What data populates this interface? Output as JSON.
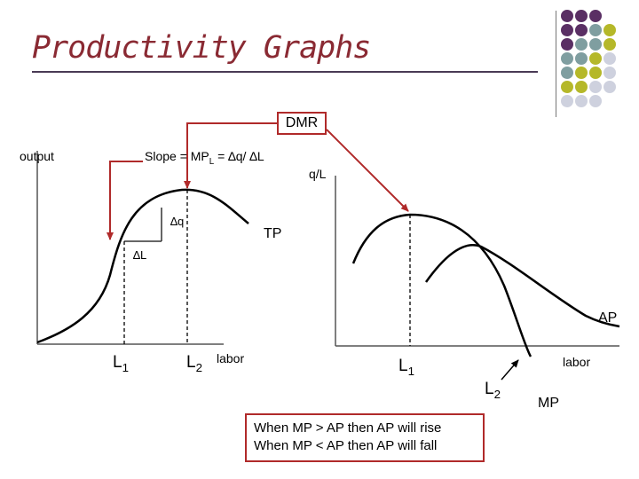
{
  "title": "Productivity Graphs",
  "accent_colors": {
    "dark_purple": "#5a2f64",
    "teal": "#7f9ea0",
    "olive": "#b5b829",
    "light_gray": "#ced1de",
    "arrow_red": "#b02a2a"
  },
  "left_graph": {
    "y_axis_label": "output",
    "slope_label": "Slope = MP",
    "slope_sub": "L",
    "slope_rest": " = ∆q/ ∆L",
    "delta_q": "∆q",
    "delta_l": "∆L",
    "curve_label": "TP",
    "x_axis_label": "labor",
    "l1": "L",
    "l1_sub": "1",
    "l2": "L",
    "l2_sub": "2"
  },
  "right_graph": {
    "y_axis_label": "q/L",
    "ap_label": "AP",
    "mp_label": "MP",
    "x_axis_label": "labor",
    "l1": "L",
    "l1_sub": "1",
    "l2": "L",
    "l2_sub": "2"
  },
  "callout": "DMR",
  "note_lines": [
    "When MP > AP then AP will rise",
    "When MP < AP then AP will fall"
  ]
}
